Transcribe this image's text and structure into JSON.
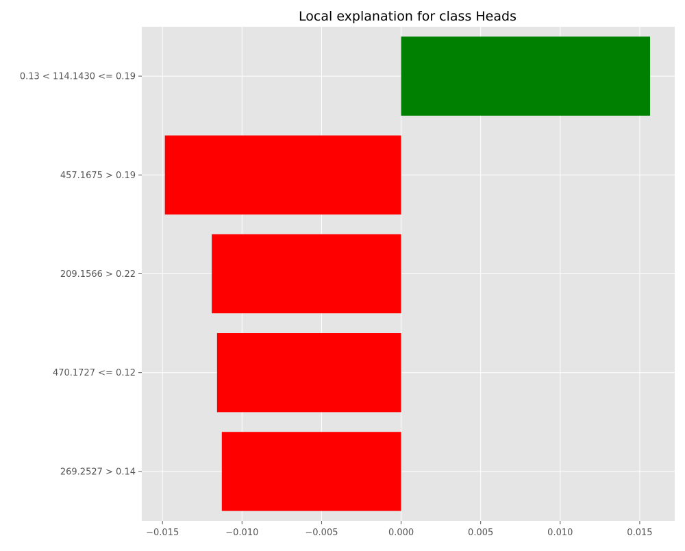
{
  "chart_data": {
    "type": "bar",
    "orientation": "horizontal",
    "title": "Local explanation for class Heads",
    "xlabel": "",
    "ylabel": "",
    "xlim": [
      -0.0163,
      0.0172
    ],
    "xticks": [
      -0.015,
      -0.01,
      -0.005,
      0.0,
      0.005,
      0.01,
      0.015
    ],
    "xtick_labels": [
      "−0.015",
      "−0.010",
      "−0.005",
      "0.000",
      "0.005",
      "0.010",
      "0.015"
    ],
    "grid": true,
    "categories": [
      "0.13 < 114.1430 <= 0.19",
      "457.1675 > 0.19",
      "209.1566 > 0.22",
      "470.1727 <= 0.12",
      "269.2527 > 0.14"
    ],
    "values": [
      0.01565,
      -0.01485,
      -0.0119,
      -0.01157,
      -0.01127
    ],
    "colors": {
      "positive": "#008000",
      "negative": "#ff0000",
      "plot_background": "#e5e5e5",
      "grid": "#ffffff"
    }
  }
}
